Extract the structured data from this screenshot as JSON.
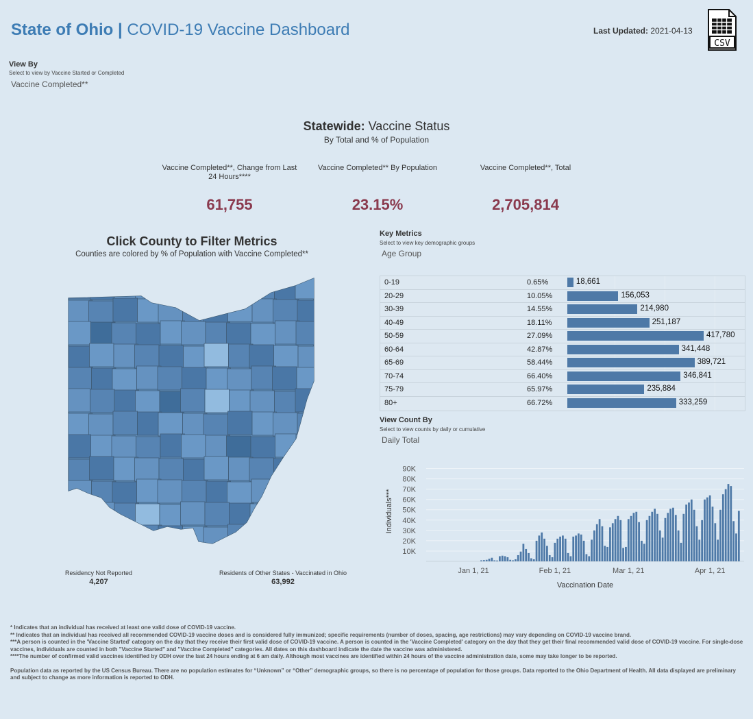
{
  "header": {
    "title_bold": "State of Ohio |",
    "title_rest": " COVID-19 Vaccine Dashboard",
    "updated_label": "Last Updated:",
    "updated_value": " 2021-04-13",
    "csv_icon_label": "CSV"
  },
  "view_by": {
    "heading": "View By",
    "subtitle": "Select to view by Vaccine Started or Completed",
    "selected": "Vaccine Completed**"
  },
  "statewide": {
    "title_bold": "Statewide:",
    "title_rest": " Vaccine Status",
    "subtitle": "By Total and % of Population",
    "kpis": [
      {
        "label": "Vaccine Completed**, Change from Last 24 Hours****",
        "value": "61,755"
      },
      {
        "label": "Vaccine Completed** By Population",
        "value": "23.15%"
      },
      {
        "label": "Vaccine Completed**, Total",
        "value": "2,705,814"
      }
    ]
  },
  "map": {
    "title": "Click County to Filter Metrics",
    "subtitle": "Counties are colored by % of Population with Vaccine Completed**",
    "colors": {
      "dark": "#3f6d9a",
      "mid": "#5c8ab8",
      "light": "#92bbdf"
    },
    "residency_not_reported": {
      "label": "Residency Not Reported",
      "value": "4,207"
    },
    "other_states": {
      "label": "Residents of Other States - Vaccinated in Ohio",
      "value": "63,992"
    }
  },
  "key_metrics": {
    "heading": "Key Metrics",
    "subtitle": "Select to view key demographic groups",
    "selected": "Age Group",
    "bar_color": "#4e79a7",
    "rows": [
      {
        "group": "0-19",
        "pct": "0.65%",
        "count_label": "18,661",
        "count": 18661
      },
      {
        "group": "20-29",
        "pct": "10.05%",
        "count_label": "156,053",
        "count": 156053
      },
      {
        "group": "30-39",
        "pct": "14.55%",
        "count_label": "214,980",
        "count": 214980
      },
      {
        "group": "40-49",
        "pct": "18.11%",
        "count_label": "251,187",
        "count": 251187
      },
      {
        "group": "50-59",
        "pct": "27.09%",
        "count_label": "417,780",
        "count": 417780
      },
      {
        "group": "60-64",
        "pct": "42.87%",
        "count_label": "341,448",
        "count": 341448
      },
      {
        "group": "65-69",
        "pct": "58.44%",
        "count_label": "389,721",
        "count": 389721
      },
      {
        "group": "70-74",
        "pct": "66.40%",
        "count_label": "346,841",
        "count": 346841
      },
      {
        "group": "75-79",
        "pct": "65.97%",
        "count_label": "235,884",
        "count": 235884
      },
      {
        "group": "80+",
        "pct": "66.72%",
        "count_label": "333,259",
        "count": 333259
      }
    ]
  },
  "view_count": {
    "heading": "View Count By",
    "subtitle": "Select to view counts by daily or cumulative",
    "selected": "Daily Total"
  },
  "chart_data": {
    "type": "bar",
    "xlabel": "Vaccination Date",
    "ylabel": "Individuals***",
    "ylim": [
      0,
      97000
    ],
    "yticks": [
      10000,
      20000,
      30000,
      40000,
      50000,
      60000,
      70000,
      80000,
      90000
    ],
    "ytick_labels": [
      "10K",
      "20K",
      "30K",
      "40K",
      "50K",
      "60K",
      "70K",
      "80K",
      "90K"
    ],
    "xticks": [
      {
        "date": "2021-01-01",
        "label": "Jan 1, 21"
      },
      {
        "date": "2021-02-01",
        "label": "Feb 1, 21"
      },
      {
        "date": "2021-03-01",
        "label": "Mar 1, 21"
      },
      {
        "date": "2021-04-01",
        "label": "Apr 1, 21"
      }
    ],
    "x_start": "2020-12-14",
    "x_end": "2021-04-14",
    "grid": true,
    "bar_color": "#4e79a7",
    "series": [
      {
        "dates": [
          "2021-01-04",
          "2021-01-05",
          "2021-01-06",
          "2021-01-07",
          "2021-01-08",
          "2021-01-09",
          "2021-01-10",
          "2021-01-11",
          "2021-01-12",
          "2021-01-13",
          "2021-01-14",
          "2021-01-15",
          "2021-01-16",
          "2021-01-17",
          "2021-01-18",
          "2021-01-19",
          "2021-01-20",
          "2021-01-21",
          "2021-01-22",
          "2021-01-23",
          "2021-01-24",
          "2021-01-25",
          "2021-01-26",
          "2021-01-27",
          "2021-01-28",
          "2021-01-29",
          "2021-01-30",
          "2021-01-31",
          "2021-02-01",
          "2021-02-02",
          "2021-02-03",
          "2021-02-04",
          "2021-02-05",
          "2021-02-06",
          "2021-02-07",
          "2021-02-08",
          "2021-02-09",
          "2021-02-10",
          "2021-02-11",
          "2021-02-12",
          "2021-02-13",
          "2021-02-14",
          "2021-02-15",
          "2021-02-16",
          "2021-02-17",
          "2021-02-18",
          "2021-02-19",
          "2021-02-20",
          "2021-02-21",
          "2021-02-22",
          "2021-02-23",
          "2021-02-24",
          "2021-02-25",
          "2021-02-26",
          "2021-02-27",
          "2021-02-28",
          "2021-03-01",
          "2021-03-02",
          "2021-03-03",
          "2021-03-04",
          "2021-03-05",
          "2021-03-06",
          "2021-03-07",
          "2021-03-08",
          "2021-03-09",
          "2021-03-10",
          "2021-03-11",
          "2021-03-12",
          "2021-03-13",
          "2021-03-14",
          "2021-03-15",
          "2021-03-16",
          "2021-03-17",
          "2021-03-18",
          "2021-03-19",
          "2021-03-20",
          "2021-03-21",
          "2021-03-22",
          "2021-03-23",
          "2021-03-24",
          "2021-03-25",
          "2021-03-26",
          "2021-03-27",
          "2021-03-28",
          "2021-03-29",
          "2021-03-30",
          "2021-03-31",
          "2021-04-01",
          "2021-04-02",
          "2021-04-03",
          "2021-04-04",
          "2021-04-05",
          "2021-04-06",
          "2021-04-07",
          "2021-04-08",
          "2021-04-09",
          "2021-04-10",
          "2021-04-11",
          "2021-04-12"
        ],
        "values": [
          1000,
          1200,
          1500,
          2500,
          3500,
          1000,
          800,
          5000,
          5500,
          5000,
          4000,
          1500,
          1000,
          2000,
          6000,
          9500,
          17000,
          12000,
          8000,
          3000,
          2000,
          20000,
          25000,
          28000,
          22000,
          15000,
          6000,
          4000,
          18000,
          22000,
          24000,
          25000,
          22000,
          8000,
          5000,
          24000,
          25000,
          27000,
          26000,
          20000,
          7000,
          5000,
          21000,
          30000,
          36000,
          41000,
          34000,
          15000,
          14000,
          33000,
          37000,
          41000,
          44000,
          40000,
          13000,
          14000,
          41000,
          44000,
          47000,
          48000,
          38000,
          20000,
          17000,
          40000,
          44000,
          48000,
          51000,
          46000,
          30000,
          23000,
          42000,
          47000,
          51000,
          52000,
          45000,
          30000,
          18000,
          46000,
          55000,
          57000,
          60000,
          50000,
          34000,
          21000,
          40000,
          60000,
          62000,
          64000,
          53000,
          37000,
          21000,
          50000,
          65000,
          70000,
          75000,
          73000,
          39000,
          27000,
          49000
        ]
      }
    ]
  },
  "footnotes": [
    "* Indicates that an individual has received at least one valid dose of COVID-19 vaccine.",
    "** Indicates that an individual has received all recommended COVID-19 vaccine doses and is considered fully immunized; specific requirements (number of doses, spacing, age restrictions) may vary depending on COVID-19 vaccine brand.",
    "***A person is counted in the 'Vaccine Started' category on the day that they receive their first valid dose of COVID-19 vaccine.  A person is counted in the 'Vaccine Completed' category on the day that they get their final recommended valid dose of COVID-19 vaccine. For single-dose vaccines, individuals are counted in both \"Vaccine Started\" and \"Vaccine Completed\" categories. All dates on this dashboard indicate the date the vaccine was administered.",
    "****The number of confirmed valid vaccines identified by ODH over the last 24 hours ending at 6 am daily. Although most vaccines are identified within 24 hours of the vaccine administration date, some may take longer to be reported.",
    "Population data as reported by the US Census Bureau. There are no population estimates for “Unknown” or “Other” demographic groups, so there is no percentage of population for those groups.  Data reported to the Ohio Department of Health.  All data displayed are preliminary and subject to change as more information is reported to ODH."
  ]
}
